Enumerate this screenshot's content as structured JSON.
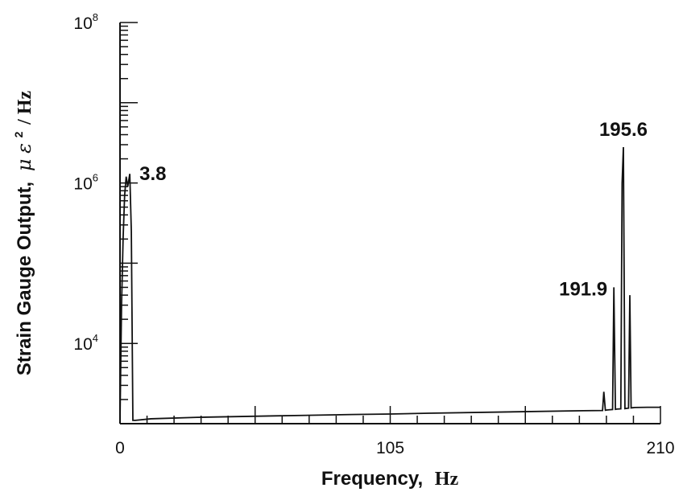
{
  "chart_data": {
    "type": "line",
    "title": "",
    "xlabel": {
      "main": "Frequency,",
      "unit": "Hz"
    },
    "ylabel": {
      "main": "Strain Gauge Output,",
      "mu": "μ",
      "eps": "ε",
      "power": "2",
      "unit": "/ Hz"
    },
    "xlim": [
      0,
      210
    ],
    "x_scale": "linear",
    "y_scale": "log",
    "ylim": [
      1000,
      100000000
    ],
    "x_ticks": [
      {
        "value": 0,
        "label": "0"
      },
      {
        "value": 105,
        "label": "105"
      },
      {
        "value": 210,
        "label": "210"
      }
    ],
    "y_ticks": [
      {
        "value": 10000,
        "base": "10",
        "exp": "4"
      },
      {
        "value": 1000000,
        "base": "10",
        "exp": "6"
      },
      {
        "value": 100000000,
        "base": "10",
        "exp": "8"
      }
    ],
    "grid": false,
    "legend": "none",
    "series": [
      {
        "values_x": [
          0,
          0.6,
          1.2,
          1.8,
          2.4,
          3.0,
          3.8,
          4.4,
          5.0,
          6.0,
          12,
          30,
          60,
          90,
          105,
          120,
          150,
          180,
          187.5,
          188.0,
          188.6,
          189.2,
          190,
          191.4,
          191.9,
          192.5,
          193,
          194.6,
          195.1,
          195.6,
          196.2,
          196.8,
          197.6,
          198.1,
          198.6,
          199.2,
          200,
          205,
          210
        ],
        "values_y": [
          1100,
          30000,
          200000,
          700000,
          1200000,
          900000,
          1300000,
          250000,
          1100,
          1100,
          1150,
          1200,
          1250,
          1300,
          1320,
          1350,
          1400,
          1450,
          1460,
          2500,
          1470,
          1480,
          1490,
          1500,
          50000,
          1510,
          1520,
          1530,
          1000000,
          2800000,
          1540,
          1550,
          1560,
          40000,
          1570,
          1580,
          1590,
          1600,
          1600
        ]
      }
    ],
    "peaks": [
      {
        "x": 3.8,
        "label": "3.8"
      },
      {
        "x": 191.9,
        "label": "191.9"
      },
      {
        "x": 195.6,
        "label": "195.6"
      }
    ],
    "colors": {
      "line": "#111111",
      "background": "#ffffff"
    }
  }
}
